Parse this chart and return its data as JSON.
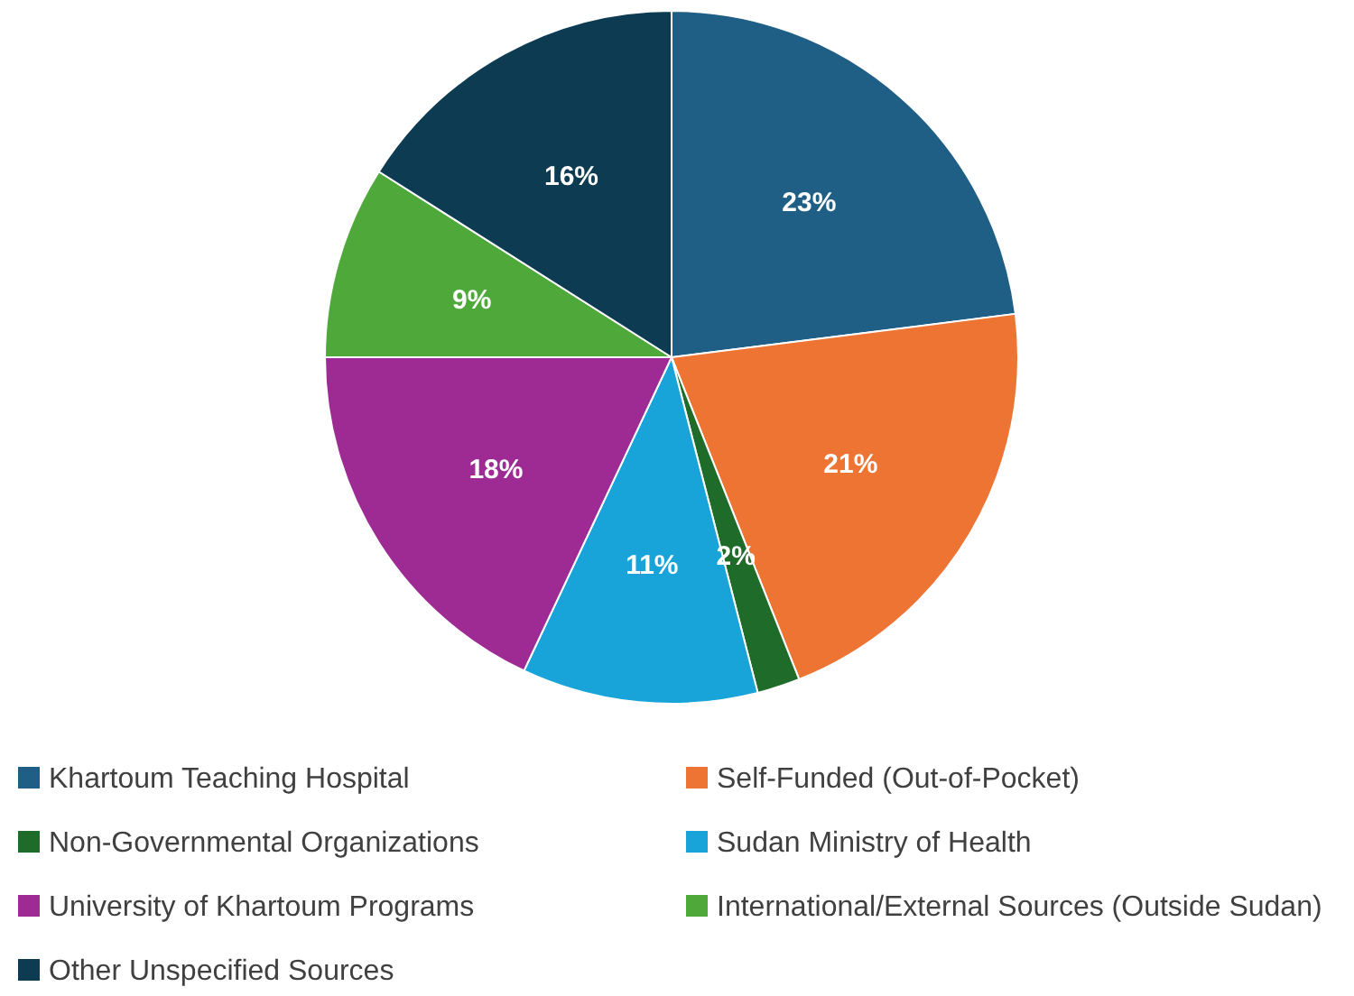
{
  "chart_data": {
    "type": "pie",
    "categories": [
      "Khartoum Teaching Hospital",
      "Self-Funded (Out-of-Pocket)",
      "Non-Governmental Organizations",
      "Sudan Ministry of Health",
      "University of Khartoum Programs",
      "International/External Sources (Outside Sudan)",
      "Other Unspecified Sources"
    ],
    "values": [
      23,
      21,
      2,
      11,
      18,
      9,
      16
    ],
    "colors": [
      "#1f5f85",
      "#ed7433",
      "#1e6b2a",
      "#18a3d9",
      "#9e2a93",
      "#4fa93a",
      "#0d3b52"
    ],
    "value_labels": [
      "23%",
      "21%",
      "2%",
      "11%",
      "18%",
      "9%",
      "16%"
    ],
    "legend": "bottom"
  }
}
